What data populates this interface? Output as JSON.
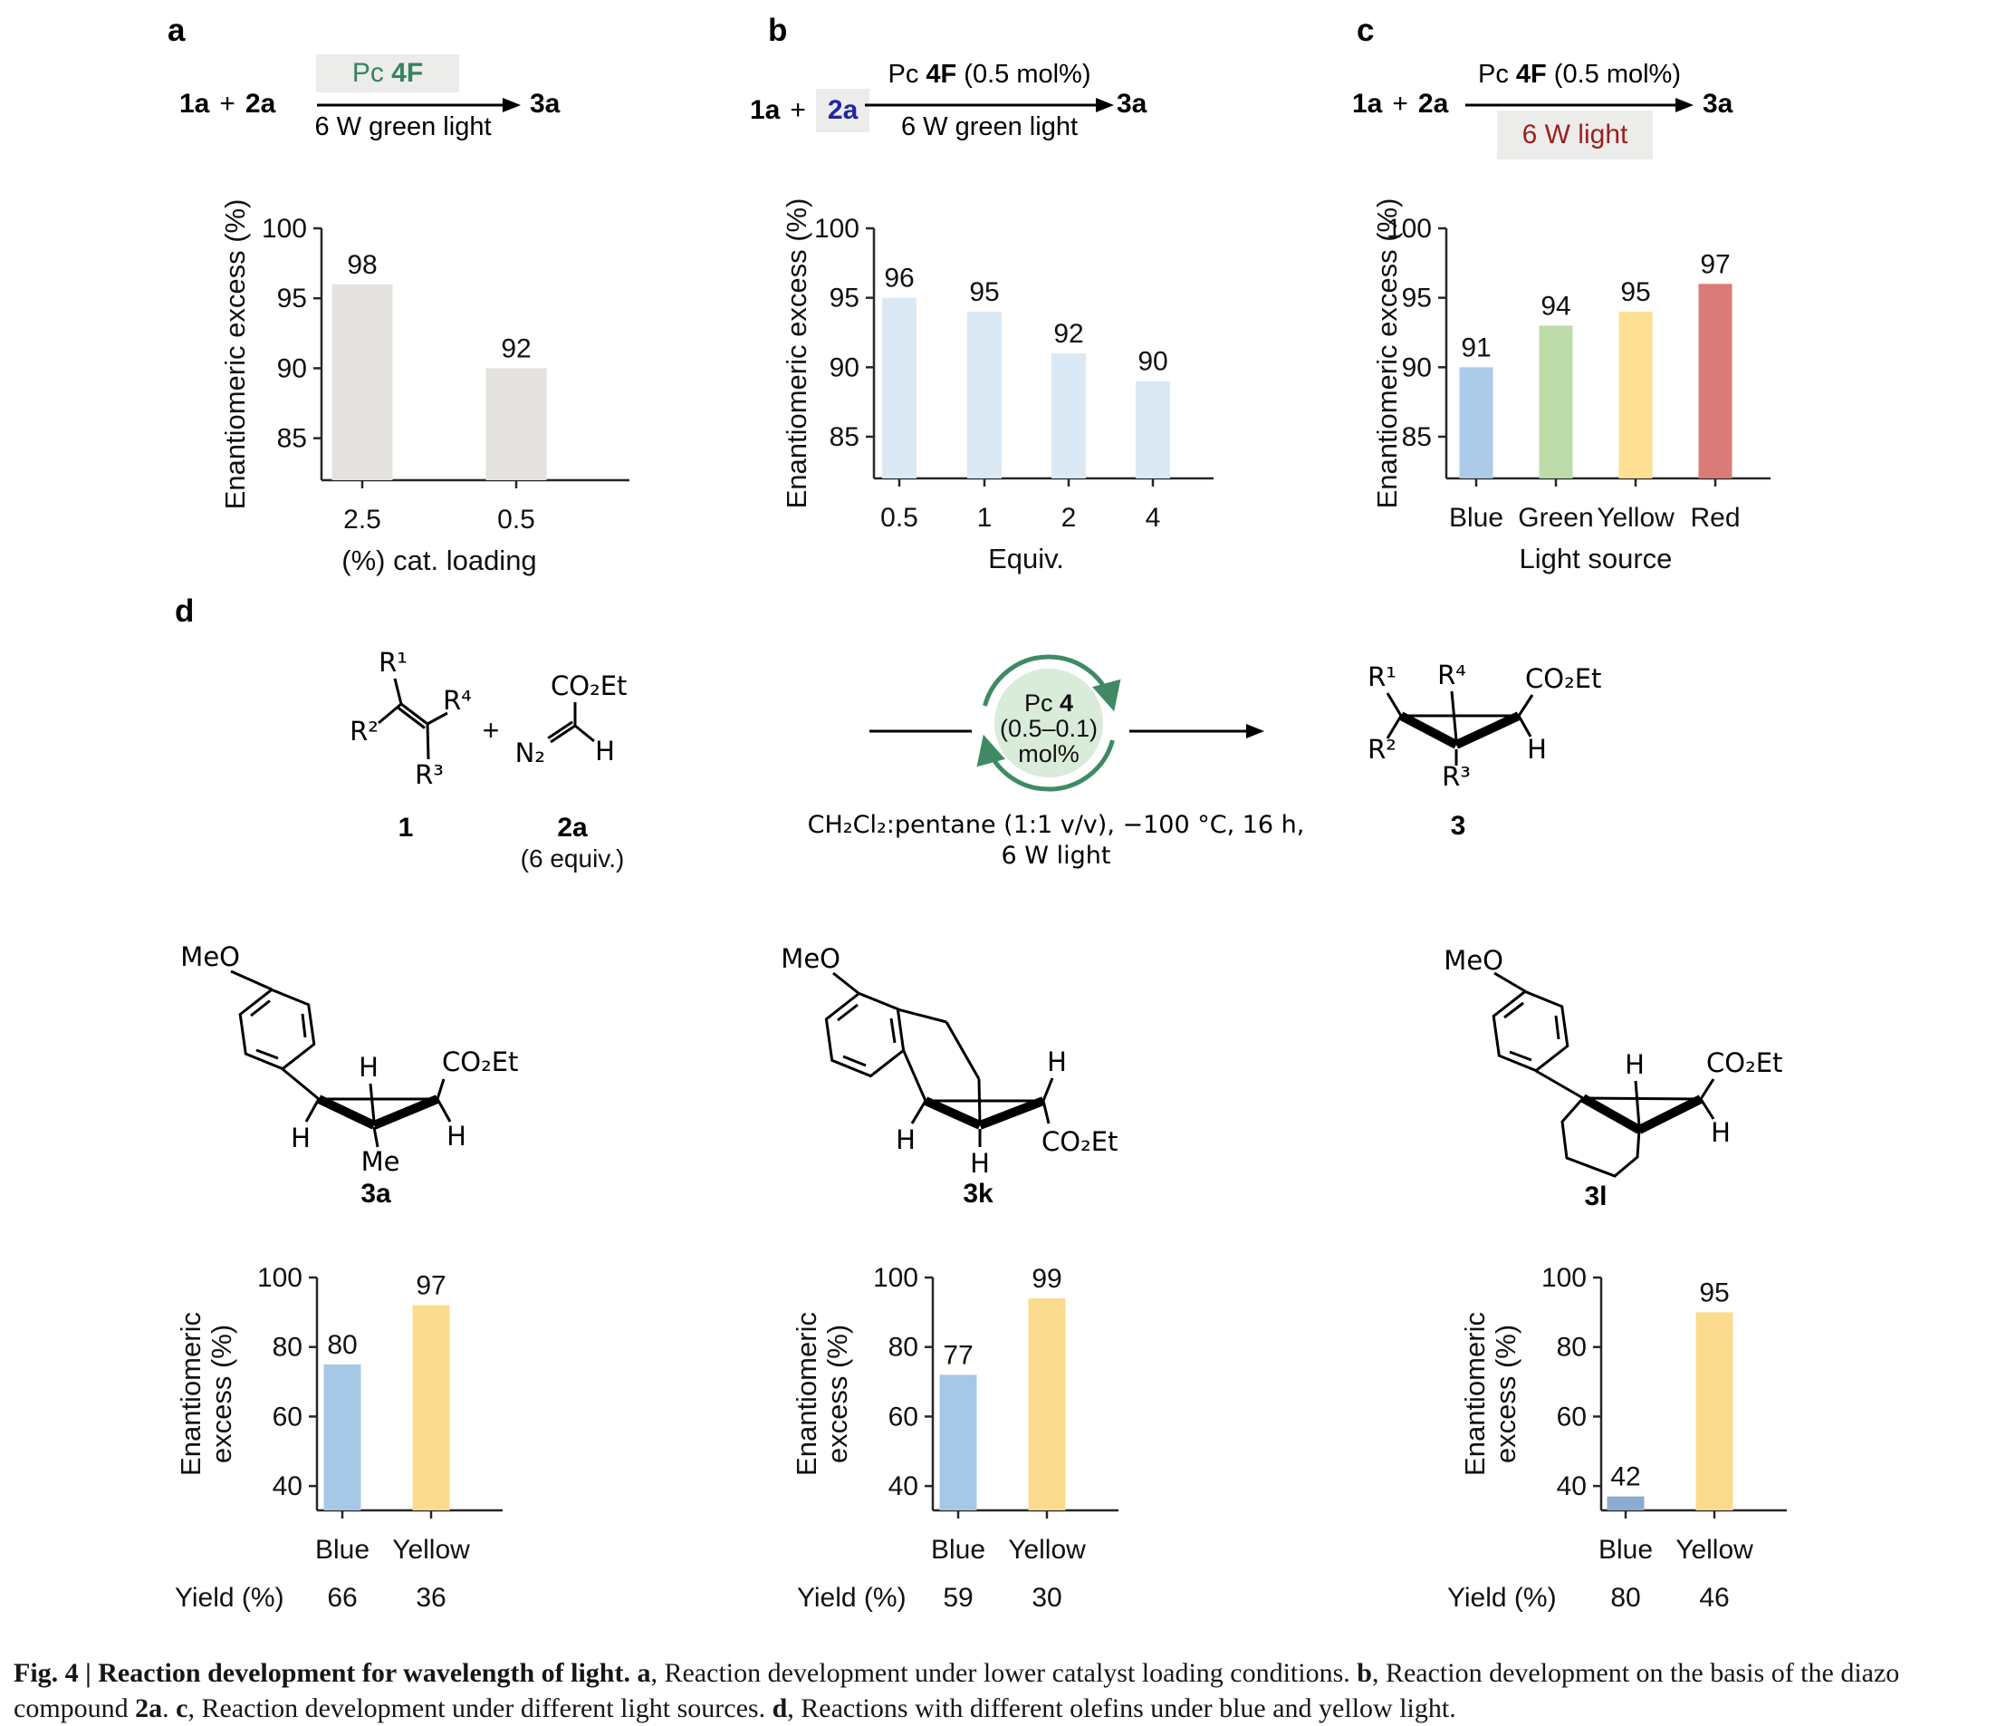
{
  "panels": {
    "a": {
      "label": "a",
      "scheme": {
        "reactant1": "1a",
        "plus": "+",
        "reactant2": "2a",
        "cat_prefix": "Pc ",
        "cat_bold": "4F",
        "cat_suffix": "",
        "below_arrow": "6 W green light",
        "product": "3a"
      }
    },
    "b": {
      "label": "b",
      "scheme": {
        "reactant1": "1a",
        "plus": "+",
        "reactant2": "2a",
        "cat_prefix": "Pc ",
        "cat_bold": "4F",
        "cat_suffix": " (0.5 mol%)",
        "below_arrow": "6 W green light",
        "product": "3a"
      }
    },
    "c": {
      "label": "c",
      "scheme": {
        "reactant1": "1a",
        "plus": "+",
        "reactant2": "2a",
        "cat_prefix": "Pc ",
        "cat_bold": "4F",
        "cat_suffix": " (0.5 mol%)",
        "below_arrow": "6 W light",
        "product": "3a"
      }
    },
    "d": {
      "label": "d",
      "scheme": {
        "olefin": {
          "r1": "R¹",
          "r2": "R²",
          "r3": "R³",
          "r4": "R⁴",
          "name": "1"
        },
        "plus": "+",
        "diazo": {
          "ester": "CO₂Et",
          "n2": "N₂",
          "h": "H",
          "name": "2a",
          "equiv": "(6 equiv.)"
        },
        "cycle": {
          "prefix": "Pc ",
          "bold": "4",
          "line2": "(0.5–0.1)",
          "line3": "mol%"
        },
        "cond1": "CH₂Cl₂:pentane (1:1 v/v), −100 °C, 16 h,",
        "cond2": "6 W light",
        "product": {
          "r1": "R¹",
          "r2": "R²",
          "r3": "R³",
          "r4": "R⁴",
          "ester": "CO₂Et",
          "h": "H",
          "name": "3"
        }
      },
      "products": {
        "p3a": {
          "name": "3a",
          "meo": "MeO",
          "h_top": "H",
          "ester": "CO₂Et",
          "h_left": "H",
          "me": "Me",
          "h_right": "H"
        },
        "p3k": {
          "name": "3k",
          "meo": "MeO",
          "h_top": "H",
          "h_left": "H",
          "h_bottom": "H",
          "ester": "CO₂Et"
        },
        "p3l": {
          "name": "3l",
          "meo": "MeO",
          "h_top": "H",
          "ester": "CO₂Et",
          "h_bottom": "H"
        }
      }
    }
  },
  "chart_data": [
    {
      "id": "a",
      "type": "bar",
      "categories": [
        "2.5",
        "0.5"
      ],
      "values": [
        98,
        92
      ],
      "bar_colors": [
        "#e4e2df",
        "#e4e2df"
      ],
      "ylabel_lines": [
        "Enantiomeric excess (%)"
      ],
      "xlabel": "(%) cat. loading",
      "yticks": [
        85,
        90,
        95,
        100
      ],
      "ymin": 82,
      "ymax": 100,
      "grid": false,
      "bar_top_offset": -2
    },
    {
      "id": "b",
      "type": "bar",
      "categories": [
        "0.5",
        "1",
        "2",
        "4"
      ],
      "values": [
        96,
        95,
        92,
        90
      ],
      "bar_colors": [
        "#dbe9f5",
        "#dbe9f5",
        "#dbe9f5",
        "#dbe9f5"
      ],
      "ylabel_lines": [
        "Enantiomeric excess (%)"
      ],
      "xlabel": "Equiv.",
      "yticks": [
        85,
        90,
        95,
        100
      ],
      "ymin": 82,
      "ymax": 100,
      "grid": false,
      "bar_top_offset": -1
    },
    {
      "id": "c",
      "type": "bar",
      "categories": [
        "Blue",
        "Green",
        "Yellow",
        "Red"
      ],
      "values": [
        91,
        94,
        95,
        97
      ],
      "bar_colors": [
        "#abcbe9",
        "#bedbaa",
        "#fcdf92",
        "#db7b78"
      ],
      "ylabel_lines": [
        "Enantiomeric excess (%)"
      ],
      "xlabel": "Light source",
      "yticks": [
        85,
        90,
        95,
        100
      ],
      "ymin": 82,
      "ymax": 100,
      "grid": false,
      "bar_top_offset": -1
    },
    {
      "id": "3a",
      "type": "bar",
      "categories": [
        "Blue",
        "Yellow"
      ],
      "values": [
        80,
        97
      ],
      "bar_colors": [
        "#a7c7e7",
        "#fbdc8f"
      ],
      "ylabel_lines": [
        "Enantiomeric",
        "excess (%)"
      ],
      "xlabel": "",
      "yticks": [
        40,
        60,
        80,
        100
      ],
      "ymin": 33,
      "ymax": 100,
      "grid": false,
      "bar_top_offset": -5,
      "yield_label": "Yield (%)",
      "yields": [
        "66",
        "36"
      ]
    },
    {
      "id": "3k",
      "type": "bar",
      "categories": [
        "Blue",
        "Yellow"
      ],
      "values": [
        77,
        99
      ],
      "bar_colors": [
        "#a7c7e7",
        "#fbdc8f"
      ],
      "ylabel_lines": [
        "Enantiomeric",
        "excess (%)"
      ],
      "xlabel": "",
      "yticks": [
        40,
        60,
        80,
        100
      ],
      "ymin": 33,
      "ymax": 100,
      "grid": false,
      "bar_top_offset": -5,
      "yield_label": "Yield (%)",
      "yields": [
        "59",
        "30"
      ]
    },
    {
      "id": "3l",
      "type": "bar",
      "categories": [
        "Blue",
        "Yellow"
      ],
      "values": [
        42,
        95
      ],
      "bar_colors": [
        "#8cabce",
        "#fbdc8f"
      ],
      "ylabel_lines": [
        "Enantiomeric",
        "excess (%)"
      ],
      "xlabel": "",
      "yticks": [
        40,
        60,
        80,
        100
      ],
      "ymin": 33,
      "ymax": 100,
      "grid": false,
      "bar_top_offset": -5,
      "yield_label": "Yield (%)",
      "yields": [
        "80",
        "46"
      ]
    }
  ],
  "caption": {
    "segments": [
      {
        "text": "Fig. 4 | Reaction development for wavelength of light. ",
        "bold": true
      },
      {
        "text": "a",
        "bold": true
      },
      {
        "text": ", Reaction development under lower catalyst loading conditions. ",
        "bold": false
      },
      {
        "text": "b",
        "bold": true
      },
      {
        "text": ", Reaction development on the basis of the diazo compound ",
        "bold": false
      },
      {
        "text": "2a",
        "bold": true
      },
      {
        "text": ". ",
        "bold": false
      },
      {
        "text": "c",
        "bold": true
      },
      {
        "text": ", Reaction development under different light sources. ",
        "bold": false
      },
      {
        "text": "d",
        "bold": true
      },
      {
        "text": ", Reactions with different olefins under blue and yellow light.",
        "bold": false
      }
    ]
  }
}
